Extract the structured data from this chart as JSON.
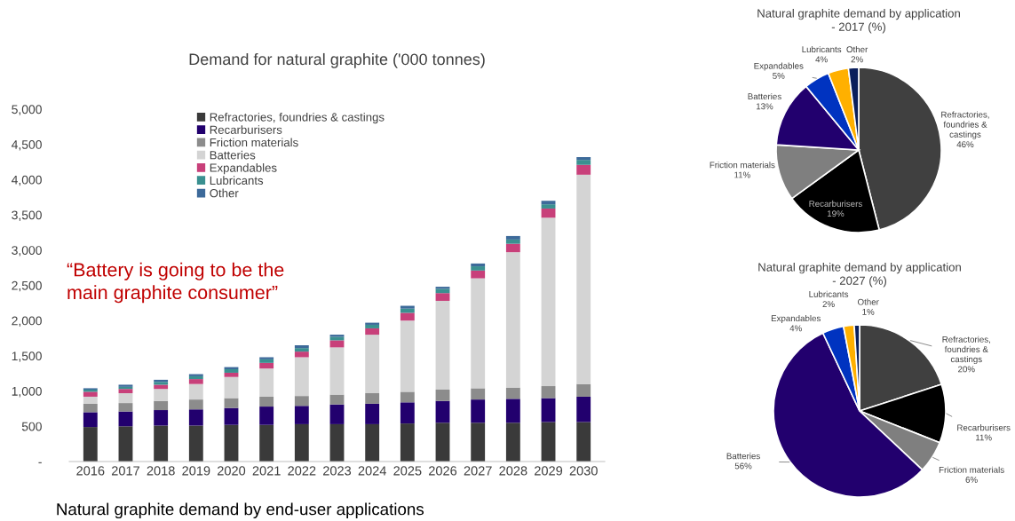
{
  "chart_data": [
    {
      "type": "bar",
      "stacked": true,
      "title": "Demand for natural graphite ('000 tonnes)",
      "categories": [
        "2016",
        "2017",
        "2018",
        "2019",
        "2020",
        "2021",
        "2022",
        "2023",
        "2024",
        "2025",
        "2026",
        "2027",
        "2028",
        "2029",
        "2030"
      ],
      "series": [
        {
          "name": "Refractories, foundries & castings",
          "color": "#3a3a3a",
          "values": [
            490,
            500,
            510,
            510,
            520,
            520,
            530,
            530,
            530,
            540,
            550,
            550,
            550,
            560,
            560
          ]
        },
        {
          "name": "Recarburisers",
          "color": "#22006e",
          "values": [
            210,
            210,
            220,
            230,
            240,
            260,
            260,
            280,
            290,
            300,
            310,
            330,
            340,
            340,
            360
          ]
        },
        {
          "name": "Friction materials",
          "color": "#8c8c8c",
          "values": [
            120,
            120,
            130,
            140,
            140,
            140,
            140,
            140,
            150,
            150,
            160,
            160,
            160,
            170,
            180
          ]
        },
        {
          "name": "Batteries",
          "color": "#d4d4d4",
          "values": [
            100,
            140,
            170,
            220,
            300,
            400,
            550,
            670,
            830,
            1010,
            1260,
            1560,
            1920,
            2390,
            2970
          ]
        },
        {
          "name": "Expandables",
          "color": "#c8407a",
          "values": [
            70,
            60,
            60,
            70,
            60,
            80,
            80,
            100,
            90,
            110,
            110,
            110,
            120,
            130,
            140
          ]
        },
        {
          "name": "Lubricants",
          "color": "#3a9090",
          "values": [
            30,
            30,
            40,
            40,
            50,
            50,
            50,
            50,
            50,
            60,
            60,
            60,
            60,
            60,
            70
          ]
        },
        {
          "name": "Other",
          "color": "#3d6a9a",
          "values": [
            20,
            30,
            30,
            30,
            30,
            30,
            40,
            30,
            30,
            40,
            30,
            40,
            50,
            50,
            40
          ]
        }
      ],
      "ylim": [
        0,
        5000
      ],
      "yticks": [
        {
          "value": 0,
          "label": "-"
        },
        500,
        {
          "value": 1000,
          "label": "1,000"
        },
        {
          "value": 1500,
          "label": "1,500"
        },
        {
          "value": 2000,
          "label": "2,000"
        },
        {
          "value": 2500,
          "label": "2,500"
        },
        {
          "value": 3000,
          "label": "3,000"
        },
        {
          "value": 3500,
          "label": "3,500"
        },
        {
          "value": 4000,
          "label": "4,000"
        },
        {
          "value": 4500,
          "label": "4,500"
        },
        {
          "value": 5000,
          "label": "5,000"
        }
      ],
      "grid": false,
      "legend": "top",
      "annotations": [
        "“Battery is going to be the\nmain graphite consumer”",
        "Natural graphite demand by end-user applications"
      ]
    },
    {
      "type": "pie",
      "title": "Natural graphite demand by application\n- 2017 (%)",
      "categories": [
        "Refractories,\nfoundries &\ncastings",
        "Recarburisers",
        "Friction materials",
        "Batteries",
        "Expandables",
        "Lubricants",
        "Other"
      ],
      "values": [
        46,
        19,
        11,
        13,
        5,
        4,
        2
      ],
      "value_labels": [
        "46%",
        "19%",
        "11%",
        "13%",
        "5%",
        "4%",
        "2%"
      ],
      "colors": [
        "#404040",
        "#000000",
        "#7f7f7f",
        "#22006e",
        "#0033c0",
        "#ffb000",
        "#0a1f5c"
      ]
    },
    {
      "type": "pie",
      "title": "Natural graphite demand by application\n- 2027 (%)",
      "categories": [
        "Refractories,\nfoundries &\ncastings",
        "Recarburisers",
        "Friction materials",
        "Batteries",
        "Expandables",
        "Lubricants",
        "Other"
      ],
      "values": [
        20,
        11,
        6,
        56,
        4,
        2,
        1
      ],
      "value_labels": [
        "20%",
        "11%",
        "6%",
        "56%",
        "4%",
        "2%",
        "1%"
      ],
      "colors": [
        "#404040",
        "#000000",
        "#7f7f7f",
        "#22006e",
        "#0033c0",
        "#ffb000",
        "#0a1f5c"
      ]
    }
  ]
}
